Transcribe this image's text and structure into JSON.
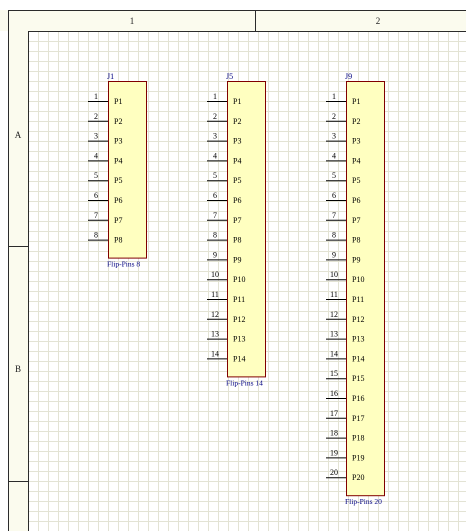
{
  "sheet": {
    "column_labels": [
      "1",
      "2"
    ],
    "row_labels": [
      "A",
      "B"
    ]
  },
  "components": [
    {
      "designator": "J1",
      "comment": "Flip-Pins 8",
      "pins": [
        {
          "number": "1",
          "name": "P1"
        },
        {
          "number": "2",
          "name": "P2"
        },
        {
          "number": "3",
          "name": "P3"
        },
        {
          "number": "4",
          "name": "P4"
        },
        {
          "number": "5",
          "name": "P5"
        },
        {
          "number": "6",
          "name": "P6"
        },
        {
          "number": "7",
          "name": "P7"
        },
        {
          "number": "8",
          "name": "P8"
        }
      ]
    },
    {
      "designator": "J5",
      "comment": "Flip-Pins 14",
      "pins": [
        {
          "number": "1",
          "name": "P1"
        },
        {
          "number": "2",
          "name": "P2"
        },
        {
          "number": "3",
          "name": "P3"
        },
        {
          "number": "4",
          "name": "P4"
        },
        {
          "number": "5",
          "name": "P5"
        },
        {
          "number": "6",
          "name": "P6"
        },
        {
          "number": "7",
          "name": "P7"
        },
        {
          "number": "8",
          "name": "P8"
        },
        {
          "number": "9",
          "name": "P9"
        },
        {
          "number": "10",
          "name": "P10"
        },
        {
          "number": "11",
          "name": "P11"
        },
        {
          "number": "12",
          "name": "P12"
        },
        {
          "number": "13",
          "name": "P13"
        },
        {
          "number": "14",
          "name": "P14"
        }
      ]
    },
    {
      "designator": "J9",
      "comment": "Flip-Pins 20",
      "pins": [
        {
          "number": "1",
          "name": "P1"
        },
        {
          "number": "2",
          "name": "P2"
        },
        {
          "number": "3",
          "name": "P3"
        },
        {
          "number": "4",
          "name": "P4"
        },
        {
          "number": "5",
          "name": "P5"
        },
        {
          "number": "6",
          "name": "P6"
        },
        {
          "number": "7",
          "name": "P7"
        },
        {
          "number": "8",
          "name": "P8"
        },
        {
          "number": "9",
          "name": "P9"
        },
        {
          "number": "10",
          "name": "P10"
        },
        {
          "number": "11",
          "name": "P11"
        },
        {
          "number": "12",
          "name": "P12"
        },
        {
          "number": "13",
          "name": "P13"
        },
        {
          "number": "14",
          "name": "P14"
        },
        {
          "number": "15",
          "name": "P15"
        },
        {
          "number": "16",
          "name": "P16"
        },
        {
          "number": "17",
          "name": "P17"
        },
        {
          "number": "18",
          "name": "P18"
        },
        {
          "number": "19",
          "name": "P19"
        },
        {
          "number": "20",
          "name": "P20"
        }
      ]
    }
  ],
  "colors": {
    "body_fill": "#ffffc0",
    "body_border": "#800000",
    "label_text": "#000080",
    "grid": "#e3e3d4"
  }
}
